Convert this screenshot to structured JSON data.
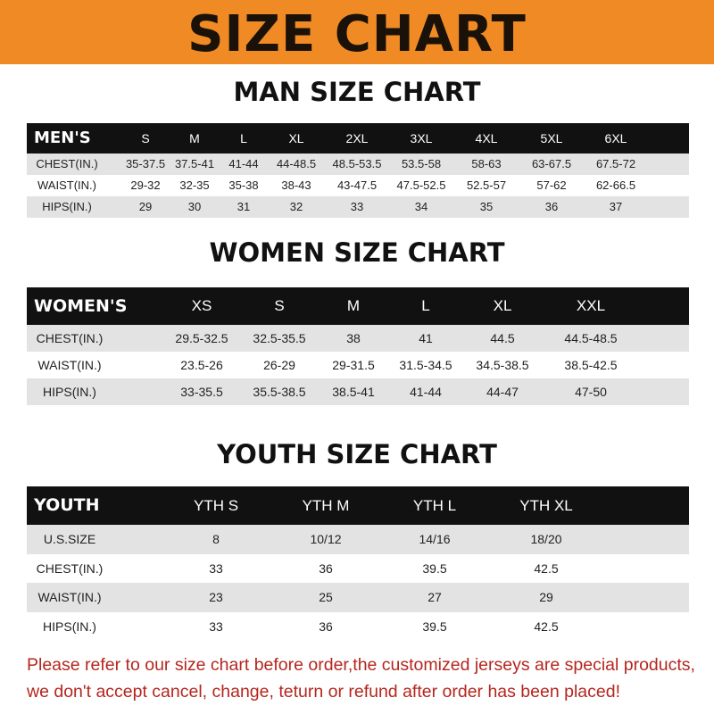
{
  "banner": {
    "title": "SIZE CHART",
    "color": "#f08a24"
  },
  "men": {
    "heading": "MAN SIZE CHART",
    "header": [
      "MEN'S",
      "S",
      "M",
      "L",
      "XL",
      "2XL",
      "3XL",
      "4XL",
      "5XL",
      "6XL"
    ],
    "rows": [
      [
        "CHEST(IN.)",
        "35-37.5",
        "37.5-41",
        "41-44",
        "44-48.5",
        "48.5-53.5",
        "53.5-58",
        "58-63",
        "63-67.5",
        "67.5-72"
      ],
      [
        "WAIST(IN.)",
        "29-32",
        "32-35",
        "35-38",
        "38-43",
        "43-47.5",
        "47.5-52.5",
        "52.5-57",
        "57-62",
        "62-66.5"
      ],
      [
        "HIPS(IN.)",
        "29",
        "30",
        "31",
        "32",
        "33",
        "34",
        "35",
        "36",
        "37"
      ]
    ]
  },
  "women": {
    "heading": "WOMEN SIZE CHART",
    "header": [
      "WOMEN'S",
      "XS",
      "S",
      "M",
      "L",
      "XL",
      "XXL"
    ],
    "rows": [
      [
        "CHEST(IN.)",
        "29.5-32.5",
        "32.5-35.5",
        "38",
        "41",
        "44.5",
        "44.5-48.5"
      ],
      [
        "WAIST(IN.)",
        "23.5-26",
        "26-29",
        "29-31.5",
        "31.5-34.5",
        "34.5-38.5",
        "38.5-42.5"
      ],
      [
        "HIPS(IN.)",
        "33-35.5",
        "35.5-38.5",
        "38.5-41",
        "41-44",
        "44-47",
        "47-50"
      ]
    ]
  },
  "youth": {
    "heading": "YOUTH SIZE CHART",
    "header": [
      "YOUTH",
      "YTH S",
      "YTH M",
      "YTH L",
      "YTH XL"
    ],
    "rows": [
      [
        "U.S.SIZE",
        "8",
        "10/12",
        "14/16",
        "18/20"
      ],
      [
        "CHEST(IN.)",
        "33",
        "36",
        "39.5",
        "42.5"
      ],
      [
        "WAIST(IN.)",
        "23",
        "25",
        "27",
        "29"
      ],
      [
        "HIPS(IN.)",
        "33",
        "36",
        "39.5",
        "42.5"
      ]
    ]
  },
  "notice": {
    "line1": "Please refer to our size chart before order,the customized jerseys are special products,",
    "line2": "we don't accept cancel, change, teturn or refund after order has been placed!",
    "color": "#b5261e"
  }
}
